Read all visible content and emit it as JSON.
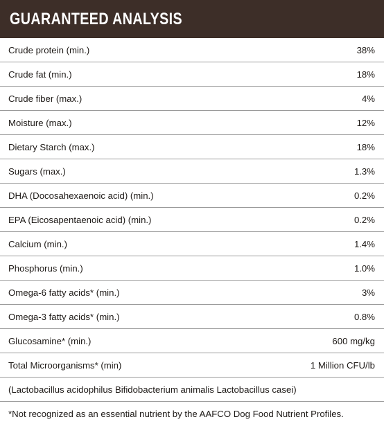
{
  "header": {
    "title": "GUARANTEED ANALYSIS"
  },
  "rows": [
    {
      "label": "Crude protein (min.)",
      "value": "38%"
    },
    {
      "label": "Crude fat (min.)",
      "value": "18%"
    },
    {
      "label": "Crude fiber (max.)",
      "value": "4%"
    },
    {
      "label": "Moisture (max.)",
      "value": "12%"
    },
    {
      "label": "Dietary Starch (max.)",
      "value": "18%"
    },
    {
      "label": "Sugars (max.)",
      "value": "1.3%"
    },
    {
      "label": "DHA (Docosahexaenoic acid) (min.)",
      "value": "0.2%"
    },
    {
      "label": "EPA (Eicosapentaenoic acid) (min.)",
      "value": "0.2%"
    },
    {
      "label": "Calcium (min.)",
      "value": "1.4%"
    },
    {
      "label": "Phosphorus (min.)",
      "value": "1.0%"
    },
    {
      "label": "Omega-6 fatty acids* (min.)",
      "value": "3%"
    },
    {
      "label": "Omega-3 fatty acids* (min.)",
      "value": "0.8%"
    },
    {
      "label": "Glucosamine* (min.)",
      "value": "600 mg/kg"
    },
    {
      "label": "Total Microorganisms* (min)",
      "value": "1 Million CFU/lb"
    }
  ],
  "organisms_note": "(Lactobacillus acidophilus Bifidobacterium animalis Lactobacillus casei)",
  "footnote": "*Not recognized as an essential nutrient by the AAFCO Dog Food Nutrient Profiles.",
  "colors": {
    "header_bg": "#3d2e28",
    "header_text": "#ffffff",
    "divider": "#9a9a9a"
  }
}
